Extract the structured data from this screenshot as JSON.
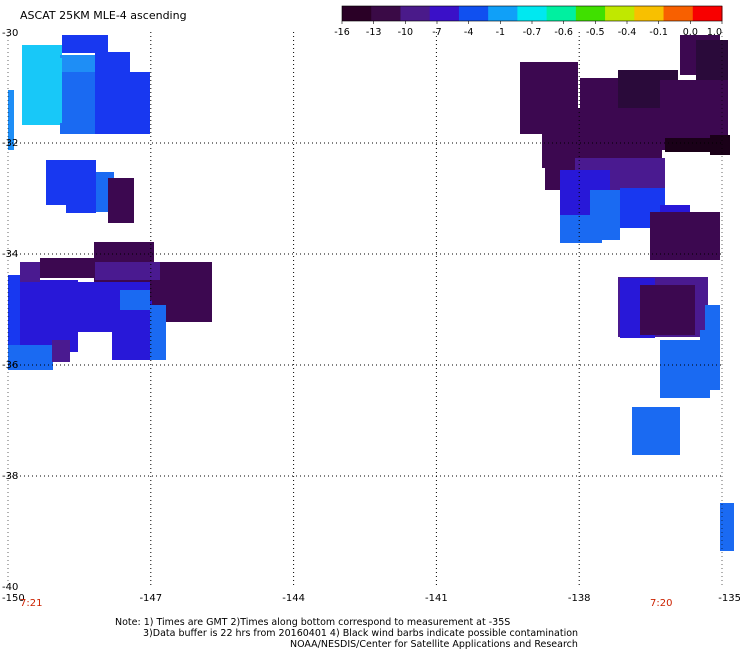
{
  "title": "ASCAT 25KM MLE-4 ascending",
  "colorbar": {
    "tick_labels": [
      "-16",
      "-13",
      "-10",
      "-7",
      "-4",
      "-1",
      "-0.7",
      "-0.6",
      "-0.5",
      "-0.4",
      "-0.1",
      "0.0",
      "1.0"
    ],
    "colors": [
      "#2a0026",
      "#3a0a46",
      "#4a1a8a",
      "#3a10c8",
      "#1050f0",
      "#10a0f8",
      "#00e8f0",
      "#00f0a0",
      "#40e000",
      "#c0e800",
      "#f8c000",
      "#f86000",
      "#f80000"
    ]
  },
  "map": {
    "lon_range": [
      -150,
      -135
    ],
    "lat_range": [
      -40,
      -30
    ],
    "lon_ticks": [
      -147,
      -144,
      -141,
      -138
    ],
    "lat_ticks": [
      -32,
      -34,
      -36,
      -38
    ],
    "left_corner_lon": "-150",
    "right_corner_lon": "-135",
    "top_lat": "-30",
    "bottom_lat": "-40"
  },
  "times": {
    "left": "7:21",
    "right": "7:20"
  },
  "notes": {
    "line1": "Note: 1) Times are GMT 2)Times along bottom correspond to measurement at -35S",
    "line2": "3)Data buffer is 22 hrs from 20160401 4) Black wind barbs indicate possible contamination",
    "line3": "NOAA/NESDIS/Center for Satellite Applications and Research"
  },
  "swath_colors": {
    "dark_purple": "#3c0850",
    "deep_purple": "#2a0a3a",
    "purple": "#4a1a90",
    "indigo": "#2818d8",
    "blue": "#1838f0",
    "mid_blue": "#1a6af2",
    "sky": "#1e8ef6",
    "cyan": "#18c8f8",
    "black": "#1a0018"
  }
}
